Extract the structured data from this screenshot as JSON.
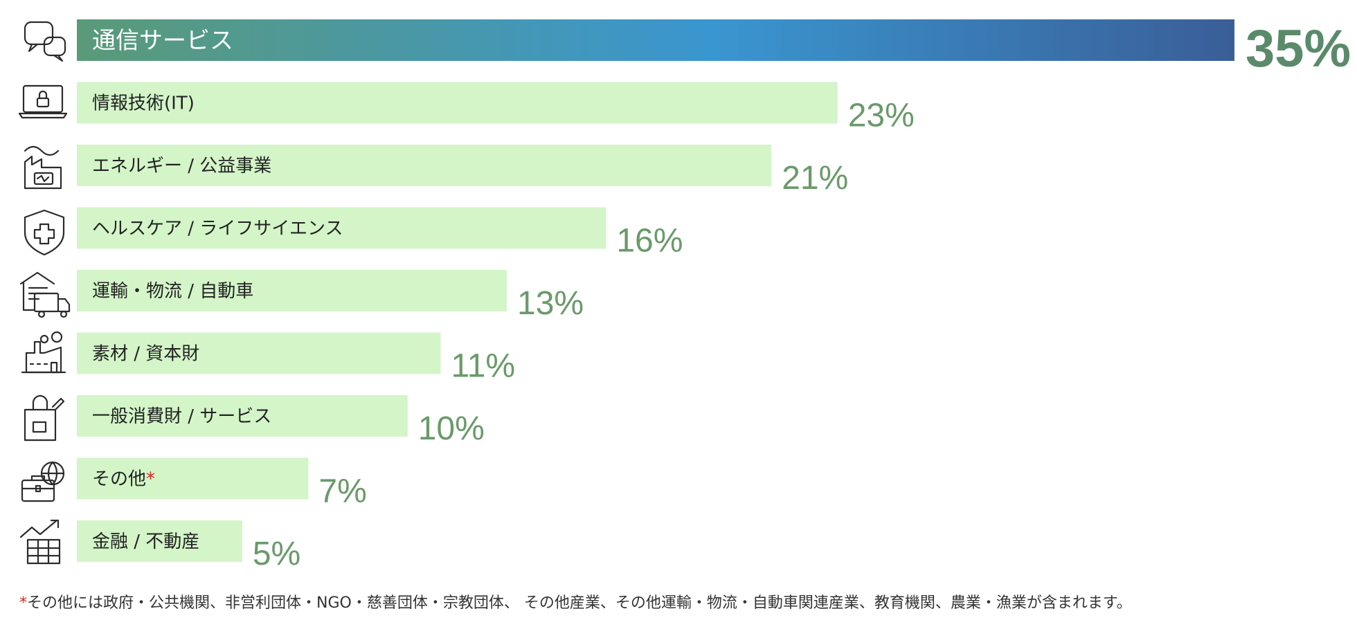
{
  "chart_data": {
    "type": "bar",
    "orientation": "horizontal",
    "categories": [
      "通信サービス",
      "情報技術(IT)",
      "エネルギー / 公益事業",
      "ヘルスケア / ライフサイエンス",
      "運輸・物流 / 自動車",
      "素材 / 資本財",
      "一般消費財 / サービス",
      "その他",
      "金融 / 不動産"
    ],
    "values": [
      35,
      23,
      21,
      16,
      13,
      11,
      10,
      7,
      5
    ],
    "value_labels": [
      "35%",
      "23%",
      "21%",
      "16%",
      "13%",
      "11%",
      "10%",
      "7%",
      "5%"
    ],
    "icons": [
      "chat-bubbles-icon",
      "laptop-lock-icon",
      "energy-factory-icon",
      "shield-cross-icon",
      "warehouse-truck-icon",
      "industrial-factory-icon",
      "shopping-bag-icon",
      "briefcase-globe-icon",
      "finance-chart-icon"
    ],
    "asterisk_category_index": 7,
    "xlim": [
      0,
      35
    ],
    "grid": false,
    "legend": "none",
    "highlight_index": 0,
    "colors": {
      "highlight_gradient": [
        "#5a9a78",
        "#3a96d0",
        "#3a5e98"
      ],
      "bar": "#d3f5c8",
      "value": "#6a9a6a",
      "highlight_value": "#5a8a6a",
      "asterisk": "#e02020"
    }
  },
  "footnote": {
    "marker": "*",
    "text": "その他には政府・公共機関、非営利団体・NGO・慈善団体・宗教団体、 その他産業、その他運輸・物流・自動車関連産業、教育機関、農業・漁業が含まれます。"
  }
}
